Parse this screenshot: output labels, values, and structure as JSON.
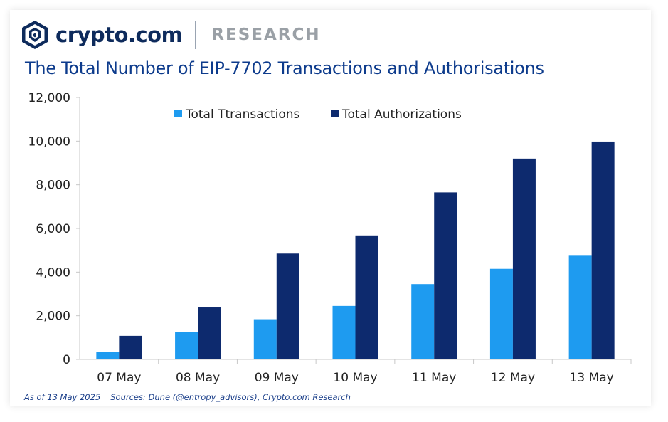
{
  "brand": {
    "name": "crypto.com",
    "section": "RESEARCH"
  },
  "colors": {
    "transactions": "#1e9bf0",
    "authorizations": "#0d2a6e",
    "title": "#0d3b8c"
  },
  "chart_data": {
    "type": "bar",
    "title": "The Total Number of EIP-7702 Transactions and Authorisations",
    "categories": [
      "07 May",
      "08 May",
      "09 May",
      "10 May",
      "11 May",
      "12 May",
      "13 May"
    ],
    "series": [
      {
        "name": "Total Ttransactions",
        "values": [
          350,
          1250,
          1840,
          2450,
          3450,
          4150,
          4750
        ]
      },
      {
        "name": "Total Authorizations",
        "values": [
          1080,
          2380,
          4850,
          5680,
          7650,
          9200,
          9980
        ]
      }
    ],
    "ylim": [
      0,
      12000
    ],
    "yticks": [
      0,
      2000,
      4000,
      6000,
      8000,
      10000,
      12000
    ],
    "ytick_labels": [
      "0",
      "2,000",
      "4,000",
      "6,000",
      "8,000",
      "10,000",
      "12,000"
    ],
    "xlabel": "",
    "ylabel": "",
    "grid": false,
    "legend": "top-center"
  },
  "footer": {
    "as_of": "As of 13 May 2025",
    "sources": "Sources: Dune (@entropy_advisors), Crypto.com Research"
  }
}
